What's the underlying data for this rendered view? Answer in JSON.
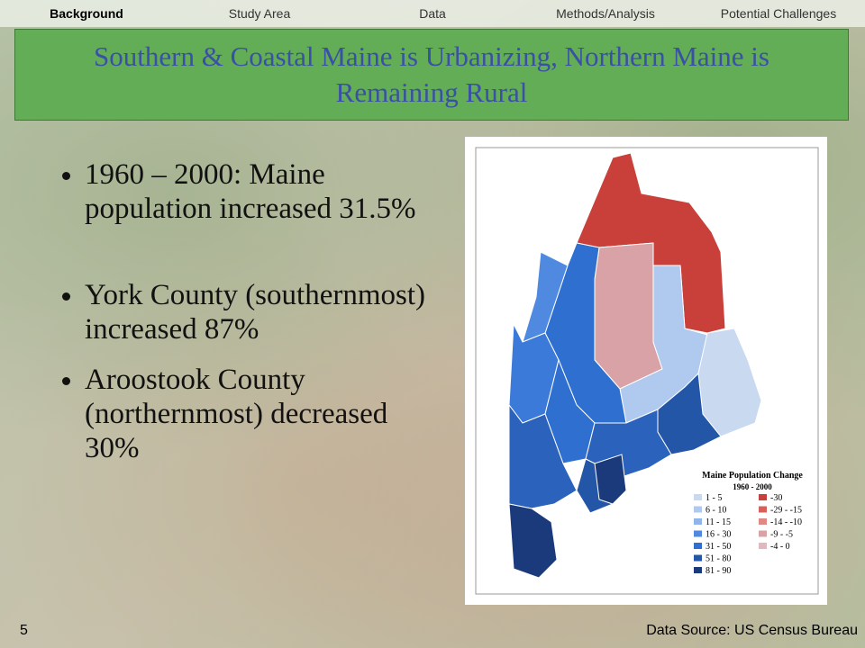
{
  "nav": {
    "items": [
      "Background",
      "Study Area",
      "Data",
      "Methods/Analysis",
      "Potential Challenges"
    ],
    "active": 0
  },
  "title": "Southern & Coastal Maine is Urbanizing, Northern Maine is Remaining Rural",
  "bullets": [
    "1960 – 2000: Maine population increased 31.5%",
    "York County (southernmost) increased 87%",
    "Aroostook County (northernmost) decreased 30%"
  ],
  "map": {
    "legend_title": "Maine Population Change",
    "legend_subtitle": "1960 - 2000",
    "increase": [
      {
        "label": "1 - 5",
        "color": "#c9d9f0"
      },
      {
        "label": "6 - 10",
        "color": "#b0c9ee"
      },
      {
        "label": "11 - 15",
        "color": "#8fb5ea"
      },
      {
        "label": "16 - 30",
        "color": "#4f8ae0"
      },
      {
        "label": "31 - 50",
        "color": "#2f6fd0"
      },
      {
        "label": "51 - 80",
        "color": "#2456a8"
      },
      {
        "label": "81 - 90",
        "color": "#1b3a7c"
      }
    ],
    "decrease": [
      {
        "label": "-30",
        "color": "#c9403b"
      },
      {
        "label": "-29 - -15",
        "color": "#d8605a"
      },
      {
        "label": "-14 - -10",
        "color": "#e08884"
      },
      {
        "label": "-9 - -5",
        "color": "#d8a2a6"
      },
      {
        "label": "-4 - 0",
        "color": "#e1b8be"
      }
    ]
  },
  "footer": {
    "page": "5",
    "source": "Data Source: US Census Bureau"
  }
}
